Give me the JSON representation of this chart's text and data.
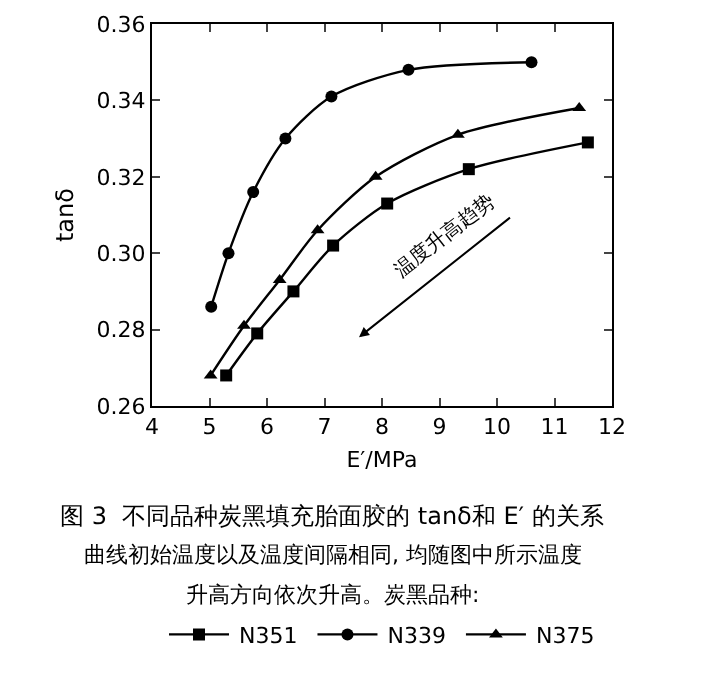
{
  "chart_data": {
    "type": "line",
    "xlabel": "E′/MPa",
    "ylabel": "tanδ",
    "xlim": [
      4,
      12
    ],
    "xticks": [
      4,
      5,
      6,
      7,
      8,
      9,
      10,
      11,
      12
    ],
    "ylim": [
      0.26,
      0.36
    ],
    "yticks": [
      0.26,
      0.28,
      {
        "value": 0.3,
        "label": "0.30"
      },
      0.32,
      0.34,
      0.36
    ],
    "grid": false,
    "legend": "bottom",
    "line_style": "solid",
    "series": [
      {
        "name": "N351",
        "color": "#000000",
        "marker": "square",
        "x": [
          5.29,
          5.83,
          6.46,
          7.15,
          8.09,
          9.51,
          11.58
        ],
        "values": [
          0.268,
          0.279,
          0.29,
          0.302,
          0.313,
          0.322,
          0.329
        ]
      },
      {
        "name": "N339",
        "color": "#000000",
        "marker": "circle",
        "x": [
          5.03,
          5.33,
          5.76,
          6.32,
          7.12,
          8.46,
          10.6
        ],
        "values": [
          0.286,
          0.3,
          0.316,
          0.33,
          0.341,
          0.348,
          0.35
        ]
      },
      {
        "name": "N375",
        "color": "#000000",
        "marker": "triangle",
        "x": [
          5.02,
          5.6,
          6.22,
          6.88,
          7.89,
          9.32,
          11.43
        ],
        "values": [
          0.268,
          0.281,
          0.293,
          0.306,
          0.32,
          0.331,
          0.338
        ]
      }
    ],
    "annotations": [
      "温度升高趋势",
      "图 3  不同品种炭黑填充胎面胶的 tanδ和 E′ 的关系",
      "曲线初始温度以及温度间隔相同, 均随图中所示温度",
      "升高方向依次升高。炭黑品种:"
    ]
  }
}
